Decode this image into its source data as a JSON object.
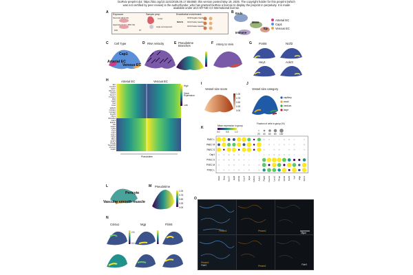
{
  "header": {
    "line1": "bioRxiv preprint doi: https://doi.org/10.1101/2025.05.17.654560; this version posted May 19, 2025. The copyright holder for this preprint (which",
    "line2": "was not certified by peer review) is the author/funder, who has granted bioRxiv a license to display the preprint in perpetuity. It is made",
    "line3": "available under aCC-BY-ND 4.0 International license."
  },
  "panels": {
    "A": {
      "label": "A",
      "exposure": "Exposure",
      "sample_prep": "Sample prep",
      "enrichment": "Endothelial enrichment",
      "conditions": [
        "Normoxia (21% O2)",
        "Hyperoxia (Fi O2 >95% O2)"
      ],
      "ages": [
        "birth",
        "postnatal",
        "P7"
      ],
      "macs": "MACS",
      "steps": [
        "CD45 Negative Selection",
        "CD31 Positive Selection",
        "CD31 Positive Selection"
      ],
      "labels": [
        "Mouse",
        "Lungs",
        "single cell suspension"
      ]
    },
    "B": {
      "label": "B",
      "groups": [
        "Endo",
        "Mese",
        "Epi",
        "Immune"
      ],
      "legend": [
        "Arterial EC",
        "Cap1",
        "Venous EC"
      ]
    },
    "C": {
      "label": "C",
      "title": "Cell Type",
      "cells": [
        "Cap1",
        "Arterial EC",
        "Venous EC"
      ]
    },
    "D": {
      "label": "D",
      "title": "RNA Velocity"
    },
    "E": {
      "label": "E",
      "title": "Pseudotime Branches"
    },
    "F": {
      "label": "F",
      "title": "Artery to Vein"
    },
    "G": {
      "label": "G",
      "genes": [
        "Pcsk5",
        "Nr2f2",
        "Hey1",
        "Ackr3"
      ]
    },
    "H": {
      "label": "H",
      "col1": "Arterial EC",
      "col2": "Venous EC",
      "axis": "Pseudotime",
      "legend_title": "Gene Expression",
      "legend_high": "High",
      "legend_low": "Low",
      "genes": [
        "Eln",
        "Cxcl12",
        "Aplnr",
        "Mecom",
        "Fbln5",
        "Sox17",
        "Tm4sf1",
        "Dll4",
        "Gja5",
        "Vwf",
        "Ctsd",
        "Igfbp5",
        "Col4a1",
        "Col4a2",
        "Fxyd5",
        "Nrp1",
        "Slco2a1",
        "Car4",
        "Ednrb",
        "Kitl",
        "Vwa1",
        "Ly6a",
        "Lrg1",
        "Car2",
        "Aqp1",
        "Nrp2",
        "Bst1",
        "Ackr3",
        "Ptgds",
        "Tspan18",
        "Vcam1",
        "Nr2f2"
      ]
    },
    "I": {
      "label": "I",
      "title": "Vessel size score",
      "ticks": [
        "1.00",
        "0.75",
        "0.50",
        "0.25",
        "0.00"
      ]
    },
    "J": {
      "label": "J",
      "title": "Vessel size category",
      "legend": [
        "capillary",
        "small",
        "medium",
        "large"
      ]
    },
    "K": {
      "label": "K",
      "mean_title": "Mean expression in group",
      "mean_ticks": [
        "0.0",
        "0.5",
        "1.0"
      ],
      "frac_title": "Fraction of cells in group (%)",
      "frac_ticks": [
        "20",
        "40",
        "60",
        "80",
        "100"
      ],
      "rows": [
        "PAEC L",
        "PAEC M",
        "PAEC S",
        "Cap1",
        "PVEC S",
        "PVEC M",
        "PVEC L"
      ],
      "cols": [
        "Dkk2",
        "Bmx",
        "Sox17",
        "Gja5",
        "Efnb2",
        "Cxcr4",
        "Gja4",
        "Cdh13",
        "Ackr1",
        "Ptgds",
        "Vcam1",
        "Lyve1",
        "Plvap",
        "Fbln5",
        "Nr2f2",
        "Vwf",
        "Mgp",
        "Smc1"
      ]
    },
    "L": {
      "label": "L",
      "cells": [
        "Pericyte",
        "Vascular smooth muscle"
      ]
    },
    "M": {
      "label": "M",
      "title": "Pseudotime",
      "ticks": [
        "1.00",
        "0.75",
        "0.50",
        "0.25",
        "0.00"
      ]
    },
    "N": {
      "label": "N",
      "genes": [
        "Col4a1",
        "Mgp",
        "Fbln5"
      ],
      "ticks": [
        "2.5",
        "0.0"
      ]
    },
    "O": {
      "label": "O",
      "stains": [
        "Pecam1",
        "Pecam1",
        "Fbln5",
        "Pecam1",
        "Fbln5"
      ],
      "scale": "25μm"
    }
  },
  "colors": {
    "arterial": "#d6398a",
    "cap1": "#5b8fd8",
    "venous": "#e8a64a",
    "viridis_low": "#440154",
    "viridis_high": "#fde725"
  }
}
